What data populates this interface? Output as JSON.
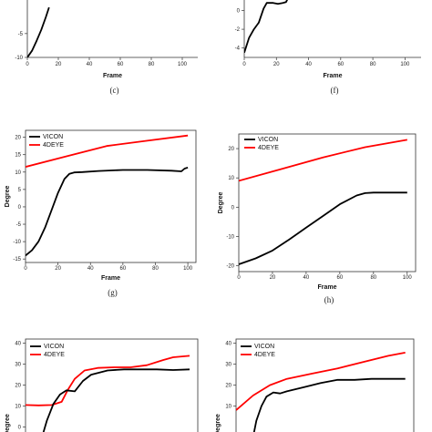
{
  "chart_data": [
    {
      "id": "e",
      "type": "line",
      "caption": "(c)",
      "xlabel": "Frame",
      "ylabel": "",
      "xlim": [
        0,
        110
      ],
      "ylim": [
        -10,
        3
      ],
      "xticks": [
        "0",
        "20",
        "40",
        "60",
        "80",
        "100"
      ],
      "yticks": [
        "-10",
        "-5"
      ],
      "series": [
        {
          "color": "#000000",
          "x": [
            0,
            3,
            6,
            9,
            12,
            14
          ],
          "y": [
            -10,
            -8.6,
            -6.5,
            -4.2,
            -1.5,
            0.5
          ]
        }
      ]
    },
    {
      "id": "f",
      "type": "line",
      "caption": "(f)",
      "xlabel": "Frame",
      "ylabel": "",
      "xlim": [
        0,
        110
      ],
      "ylim": [
        -5,
        1.6
      ],
      "xticks": [
        "0",
        "20",
        "40",
        "60",
        "80",
        "100"
      ],
      "yticks": [
        "0",
        "-2",
        "-4"
      ],
      "series": [
        {
          "color": "#000000",
          "x": [
            0,
            3,
            6,
            9,
            12,
            14,
            18,
            21,
            24,
            26,
            28
          ],
          "y": [
            -4.5,
            -2.9,
            -2.0,
            -1.3,
            0.2,
            0.8,
            0.8,
            0.7,
            0.8,
            0.9,
            1.6
          ]
        }
      ]
    },
    {
      "id": "g",
      "type": "line",
      "caption": "(g)",
      "xlabel": "Frame",
      "ylabel": "Degree",
      "xlim": [
        0,
        105
      ],
      "ylim": [
        -16,
        22
      ],
      "xticks": [
        "0",
        "20",
        "40",
        "60",
        "80",
        "100"
      ],
      "yticks": [
        "20",
        "15",
        "10",
        "5",
        "0",
        "-5",
        "-10",
        "-15"
      ],
      "legend": [
        "VICON",
        "4DEYE"
      ],
      "series": [
        {
          "name": "VICON",
          "color": "#000000",
          "x": [
            0,
            4,
            8,
            12,
            16,
            20,
            24,
            27,
            30,
            35,
            45,
            60,
            75,
            90,
            96,
            98,
            100
          ],
          "y": [
            -14,
            -12.5,
            -10,
            -6,
            -1,
            4,
            8,
            9.5,
            9.9,
            10,
            10.3,
            10.6,
            10.6,
            10.4,
            10.2,
            11,
            11.3
          ]
        },
        {
          "name": "4DEYE",
          "color": "#ff0000",
          "x": [
            0,
            25,
            50,
            75,
            100
          ],
          "y": [
            11.5,
            14.5,
            17.5,
            19,
            20.5
          ]
        }
      ]
    },
    {
      "id": "h",
      "type": "line",
      "caption": "(h)",
      "xlabel": "Frame",
      "ylabel": "Degree",
      "xlim": [
        0,
        105
      ],
      "ylim": [
        -22,
        25
      ],
      "xticks": [
        "0",
        "20",
        "40",
        "60",
        "80",
        "100"
      ],
      "yticks": [
        "20",
        "10",
        "0",
        "-10",
        "-20"
      ],
      "legend": [
        "VICON",
        "4DEYE"
      ],
      "series": [
        {
          "name": "VICON",
          "color": "#000000",
          "x": [
            0,
            10,
            20,
            30,
            40,
            50,
            60,
            70,
            75,
            80,
            90,
            100
          ],
          "y": [
            -19.5,
            -17.5,
            -14.8,
            -11,
            -7,
            -3,
            1,
            4,
            4.8,
            5,
            5,
            5
          ]
        },
        {
          "name": "4DEYE",
          "color": "#ff0000",
          "x": [
            0,
            25,
            50,
            75,
            100
          ],
          "y": [
            9,
            13,
            17,
            20.5,
            23
          ]
        }
      ]
    },
    {
      "id": "i",
      "type": "line",
      "caption": "",
      "xlabel": "",
      "ylabel": "Degree",
      "xlim": [
        0,
        105
      ],
      "ylim": [
        -5,
        42
      ],
      "xticks": [],
      "yticks": [
        "40",
        "30",
        "20",
        "10",
        "0"
      ],
      "legend": [
        "VICON",
        "4DEYE"
      ],
      "series": [
        {
          "name": "VICON",
          "color": "#000000",
          "x": [
            10,
            13,
            17,
            21,
            25,
            30,
            35,
            40,
            50,
            60,
            70,
            80,
            90,
            100
          ],
          "y": [
            -5,
            3,
            11,
            15.5,
            17.5,
            17,
            22,
            25,
            27,
            27.5,
            27.5,
            27.5,
            27.2,
            27.5
          ]
        },
        {
          "name": "4DEYE",
          "color": "#ff0000",
          "x": [
            0,
            8,
            16,
            22,
            26,
            30,
            36,
            44,
            54,
            64,
            74,
            84,
            90,
            100
          ],
          "y": [
            10.5,
            10.3,
            10.5,
            12,
            18,
            23,
            27,
            28.2,
            28.5,
            28.5,
            29.5,
            32,
            33.3,
            34
          ]
        }
      ]
    },
    {
      "id": "j",
      "type": "line",
      "caption": "",
      "xlabel": "",
      "ylabel": "Degree",
      "xlim": [
        0,
        105
      ],
      "ylim": [
        -5,
        42
      ],
      "xticks": [],
      "yticks": [
        "40",
        "30",
        "20",
        "10"
      ],
      "legend": [
        "VICON",
        "4DEYE"
      ],
      "series": [
        {
          "name": "VICON",
          "color": "#000000",
          "x": [
            10,
            12,
            15,
            18,
            22,
            26,
            30,
            35,
            40,
            50,
            60,
            70,
            80,
            90,
            100
          ],
          "y": [
            -5,
            3,
            10,
            14.5,
            16.5,
            16,
            17,
            18,
            19,
            21,
            22.5,
            22.5,
            23,
            23,
            23
          ]
        },
        {
          "name": "4DEYE",
          "color": "#ff0000",
          "x": [
            0,
            10,
            20,
            30,
            45,
            60,
            75,
            90,
            100
          ],
          "y": [
            8,
            15,
            20,
            23,
            25.5,
            28,
            31,
            34,
            35.5
          ]
        }
      ]
    }
  ]
}
